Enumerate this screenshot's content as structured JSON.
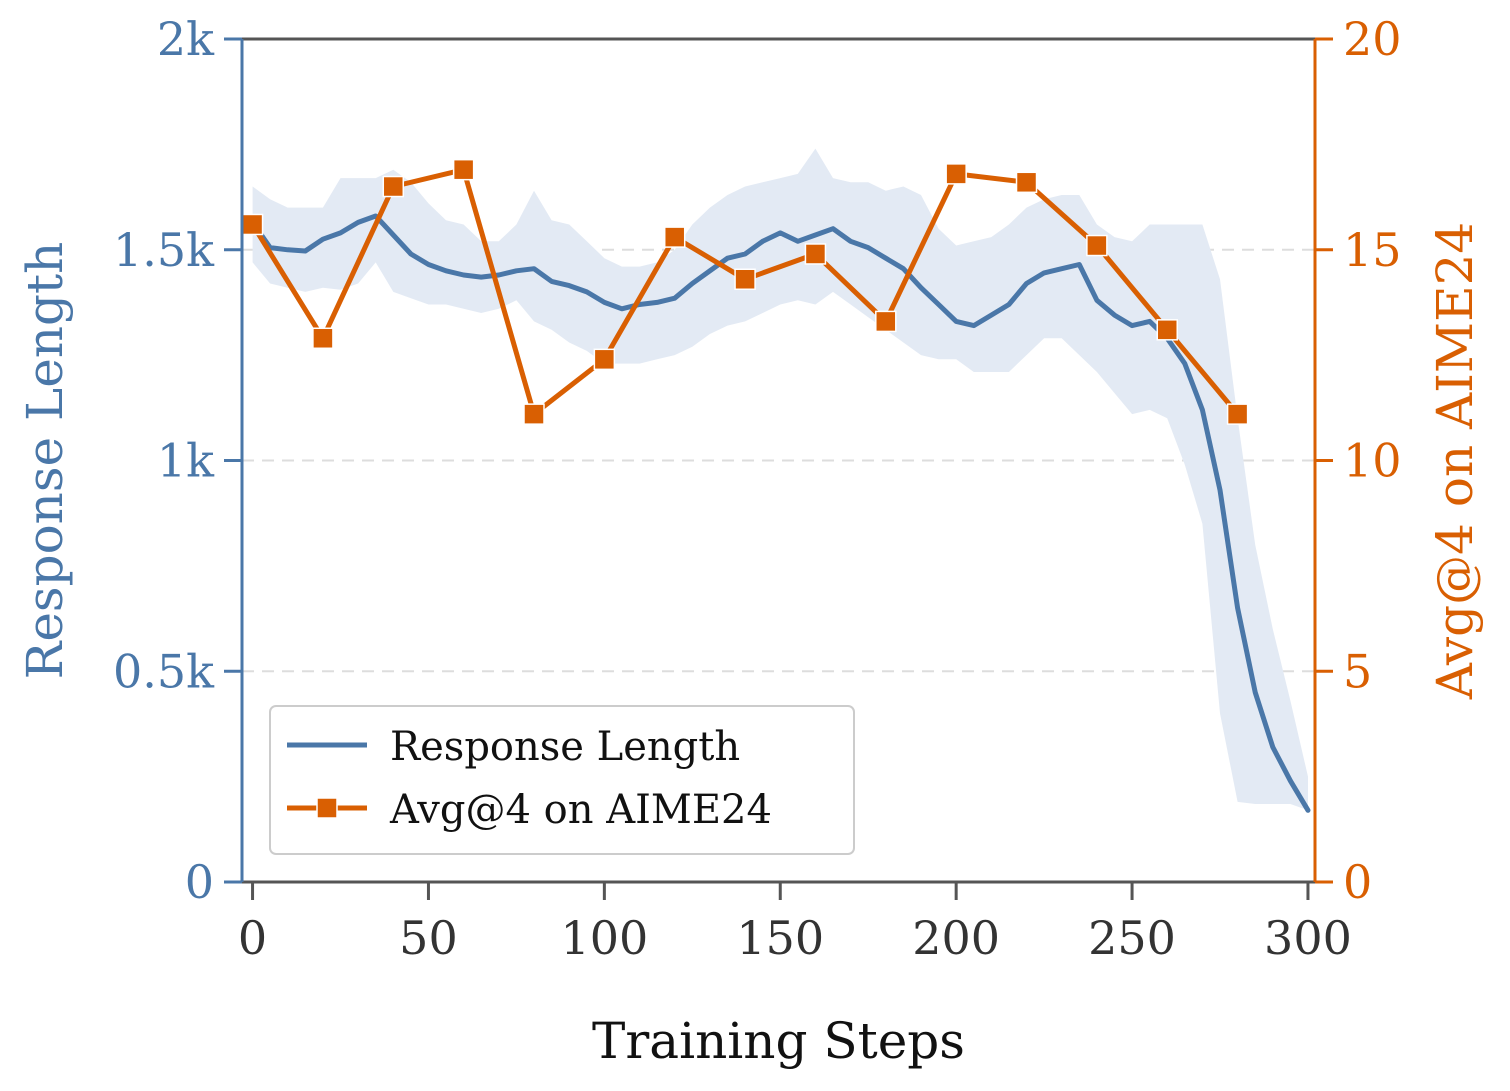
{
  "chart_data": {
    "type": "line",
    "title": "",
    "xlabel": "Training Steps",
    "ylabel_left": "Response Length",
    "ylabel_right": "Avg@4 on AIME24",
    "xlim": [
      -3,
      302
    ],
    "ylim_left": [
      0,
      2000
    ],
    "ylim_right": [
      0,
      20
    ],
    "x_ticks": [
      0,
      50,
      100,
      150,
      200,
      250,
      300
    ],
    "x_tick_labels": [
      "0",
      "50",
      "100",
      "150",
      "200",
      "250",
      "300"
    ],
    "y_left_ticks": [
      0,
      500,
      1000,
      1500,
      2000
    ],
    "y_left_tick_labels": [
      "0",
      "0.5k",
      "1k",
      "1.5k",
      "2k"
    ],
    "y_right_ticks": [
      0,
      5,
      10,
      15,
      20
    ],
    "y_right_tick_labels": [
      "0",
      "5",
      "10",
      "15",
      "20"
    ],
    "grid": "horizontal dashed",
    "legend_position": "lower-left",
    "colors": {
      "length": "#4a77a8",
      "aime": "#d95f02",
      "band": "#e3eaf4",
      "grid": "#dddddd"
    },
    "series": [
      {
        "name": "Response Length",
        "axis": "left",
        "x": [
          0,
          5,
          10,
          15,
          20,
          25,
          30,
          35,
          40,
          45,
          50,
          55,
          60,
          65,
          70,
          75,
          80,
          85,
          90,
          95,
          100,
          105,
          110,
          115,
          120,
          125,
          130,
          135,
          140,
          145,
          150,
          155,
          160,
          165,
          170,
          175,
          180,
          185,
          190,
          195,
          200,
          205,
          210,
          215,
          220,
          225,
          230,
          235,
          240,
          245,
          250,
          255,
          260,
          265,
          270,
          275,
          280,
          285,
          290,
          295,
          300
        ],
        "values": [
          1565,
          1505,
          1500,
          1497,
          1525,
          1540,
          1565,
          1580,
          1535,
          1490,
          1465,
          1450,
          1440,
          1435,
          1440,
          1450,
          1455,
          1425,
          1415,
          1400,
          1375,
          1360,
          1370,
          1375,
          1385,
          1420,
          1450,
          1480,
          1490,
          1520,
          1540,
          1520,
          1535,
          1550,
          1520,
          1505,
          1480,
          1455,
          1410,
          1370,
          1330,
          1320,
          1345,
          1370,
          1420,
          1445,
          1455,
          1465,
          1380,
          1345,
          1320,
          1330,
          1290,
          1230,
          1120,
          930,
          650,
          450,
          320,
          240,
          170
        ],
        "band_upper": [
          1650,
          1620,
          1600,
          1600,
          1600,
          1670,
          1670,
          1670,
          1690,
          1660,
          1610,
          1570,
          1560,
          1520,
          1520,
          1560,
          1640,
          1570,
          1560,
          1520,
          1480,
          1460,
          1460,
          1470,
          1500,
          1560,
          1600,
          1630,
          1650,
          1660,
          1670,
          1680,
          1740,
          1670,
          1660,
          1660,
          1640,
          1650,
          1630,
          1550,
          1510,
          1520,
          1530,
          1560,
          1600,
          1620,
          1630,
          1630,
          1560,
          1530,
          1520,
          1560,
          1560,
          1560,
          1560,
          1430,
          1100,
          800,
          600,
          430,
          250
        ],
        "band_lower": [
          1470,
          1420,
          1410,
          1400,
          1410,
          1405,
          1420,
          1470,
          1400,
          1385,
          1370,
          1370,
          1360,
          1350,
          1360,
          1380,
          1330,
          1310,
          1280,
          1260,
          1230,
          1230,
          1230,
          1240,
          1250,
          1270,
          1300,
          1320,
          1330,
          1350,
          1370,
          1380,
          1370,
          1400,
          1370,
          1340,
          1310,
          1280,
          1250,
          1240,
          1240,
          1210,
          1210,
          1210,
          1250,
          1290,
          1290,
          1250,
          1210,
          1160,
          1110,
          1120,
          1100,
          990,
          850,
          400,
          190,
          185,
          185,
          185,
          170
        ]
      },
      {
        "name": "Avg@4 on AIME24",
        "axis": "right",
        "x": [
          0,
          20,
          40,
          60,
          80,
          100,
          120,
          140,
          160,
          180,
          200,
          220,
          240,
          260,
          280
        ],
        "values": [
          15.6,
          12.9,
          16.5,
          16.9,
          11.1,
          12.4,
          15.3,
          14.3,
          14.9,
          13.3,
          16.8,
          16.6,
          15.1,
          13.1,
          11.1
        ]
      }
    ]
  }
}
